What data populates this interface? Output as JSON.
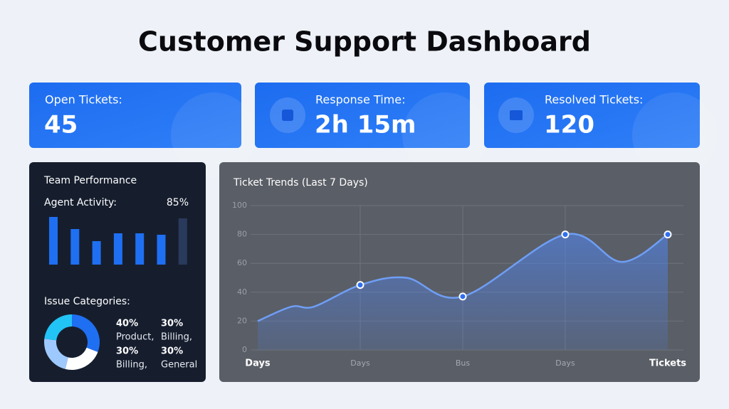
{
  "title": "Customer Support Dashboard",
  "cards": [
    {
      "label": "Open Tickets:",
      "value": 45
    },
    {
      "label": "Response Time:",
      "value": "2h 15m"
    },
    {
      "label": "Resolved Tickets:",
      "value": 120
    }
  ],
  "team_performance": {
    "title": "Team Performance",
    "activity_label": "Agent Activity:",
    "activity_value": "85%",
    "bars": {
      "type": "bar",
      "values": [
        67,
        50,
        33,
        44,
        44,
        42,
        65
      ],
      "colors": [
        "#1f6ff2",
        "#1f6ff2",
        "#1f6ff2",
        "#1f6ff2",
        "#1f6ff2",
        "#1f6ff2",
        "#2a3a5c"
      ]
    },
    "categories_title": "Issue Categories:",
    "donut": {
      "type": "pie",
      "values": [
        40,
        30,
        30,
        30
      ],
      "value_labels": [
        "40%",
        "30%",
        "30%",
        "30%"
      ],
      "labels": [
        "Product,",
        "Billing,",
        "Billing,",
        "General"
      ],
      "colors": [
        "#1f6ff2",
        "#ffffff",
        "#9ec9ff",
        "#22c4f5"
      ]
    }
  },
  "chart_data": {
    "type": "line",
    "title": "Ticket Trends (Last 7 Days)",
    "x": [
      0,
      0.33,
      0.55,
      1,
      1.45,
      2,
      3,
      3.55,
      4
    ],
    "values": [
      20,
      30,
      30,
      45,
      50,
      37,
      80,
      61,
      80
    ],
    "markers": [
      false,
      false,
      false,
      true,
      false,
      true,
      true,
      false,
      true
    ],
    "color": "#6f9ef5",
    "xlim": [
      0,
      4
    ],
    "xticks": [
      {
        "value": 0,
        "label": "Days"
      },
      {
        "value": 1,
        "label": "Days"
      },
      {
        "value": 2,
        "label": "Bus"
      },
      {
        "value": 3,
        "label": "Days"
      },
      {
        "value": 4,
        "label": "Tickets"
      }
    ],
    "ylim": [
      0,
      100
    ],
    "yticks": [
      0,
      20,
      40,
      60,
      80,
      100
    ],
    "grid": true
  }
}
